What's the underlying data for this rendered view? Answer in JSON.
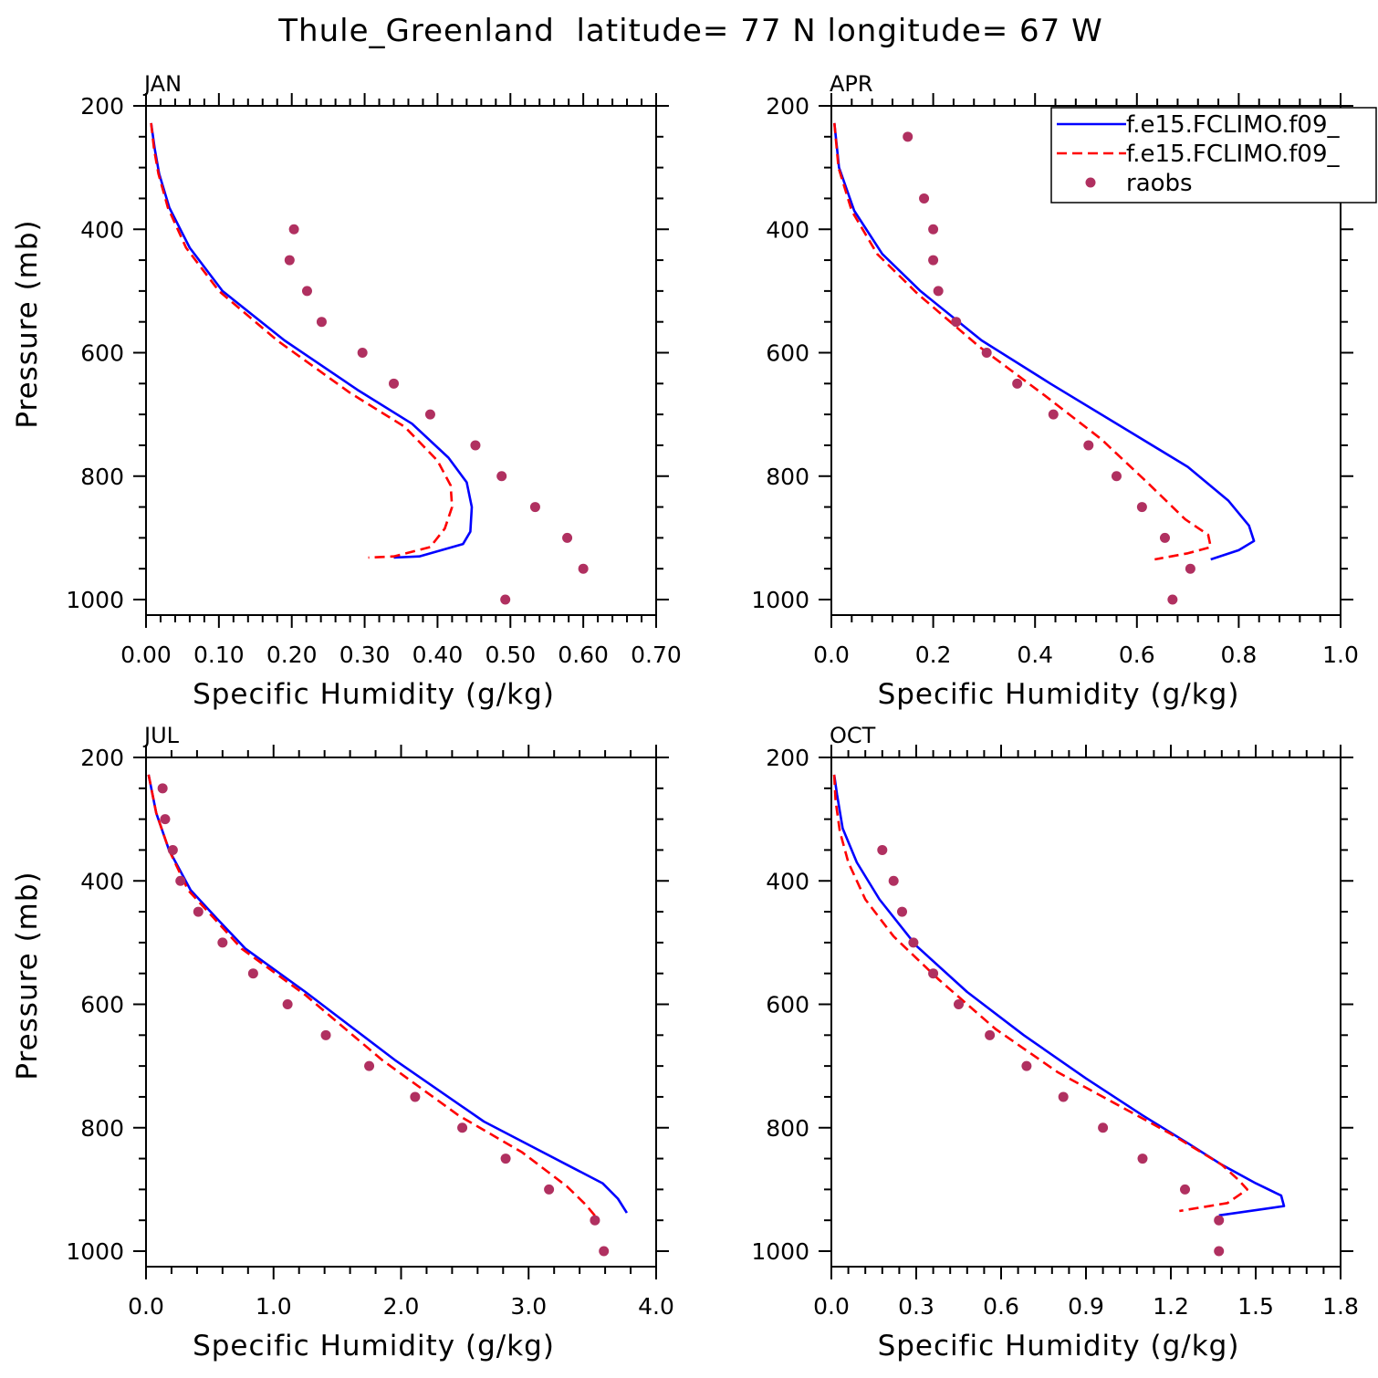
{
  "figure": {
    "title": "Thule_Greenland  latitude= 77 N longitude= 67 W"
  },
  "legend": {
    "placement": "top-right of APR panel",
    "entries": [
      {
        "label": "f.e15.FCLIMO.f09_",
        "style": "solid",
        "color": "#0000ff"
      },
      {
        "label": "f.e15.FCLIMO.f09_",
        "style": "dashed",
        "color": "#ff0000"
      },
      {
        "label": "raobs",
        "style": "dots",
        "color": "#b03060"
      }
    ]
  },
  "chart_data": [
    {
      "type": "line",
      "panel": "JAN",
      "xlabel": "Specific Humidity (g/kg)",
      "ylabel": "Pressure (mb)",
      "xlim": [
        0,
        0.7
      ],
      "ylim": [
        1000,
        200
      ],
      "xticks": [
        "0.00",
        "0.10",
        "0.20",
        "0.30",
        "0.40",
        "0.50",
        "0.60",
        "0.70"
      ],
      "yticks": [
        "200",
        "400",
        "600",
        "800",
        "1000"
      ],
      "series": [
        {
          "name": "f.e15.FCLIMO.f09_",
          "style": "solid",
          "points": [
            [
              0.007,
              228
            ],
            [
              0.012,
              270
            ],
            [
              0.018,
              310
            ],
            [
              0.032,
              365
            ],
            [
              0.06,
              430
            ],
            [
              0.105,
              500
            ],
            [
              0.19,
              580
            ],
            [
              0.29,
              660
            ],
            [
              0.365,
              715
            ],
            [
              0.415,
              770
            ],
            [
              0.44,
              810
            ],
            [
              0.447,
              850
            ],
            [
              0.445,
              890
            ],
            [
              0.435,
              910
            ],
            [
              0.375,
              930
            ],
            [
              0.34,
              932
            ]
          ]
        },
        {
          "name": "f.e15.FCLIMO.f09_",
          "style": "dashed",
          "points": [
            [
              0.007,
              228
            ],
            [
              0.011,
              270
            ],
            [
              0.017,
              310
            ],
            [
              0.03,
              365
            ],
            [
              0.055,
              430
            ],
            [
              0.1,
              500
            ],
            [
              0.18,
              580
            ],
            [
              0.28,
              665
            ],
            [
              0.355,
              720
            ],
            [
              0.4,
              775
            ],
            [
              0.418,
              815
            ],
            [
              0.42,
              850
            ],
            [
              0.41,
              885
            ],
            [
              0.39,
              915
            ],
            [
              0.34,
              930
            ],
            [
              0.305,
              932
            ]
          ]
        },
        {
          "name": "raobs",
          "style": "dots",
          "points": [
            [
              0.203,
              400
            ],
            [
              0.197,
              450
            ],
            [
              0.221,
              500
            ],
            [
              0.241,
              550
            ],
            [
              0.297,
              600
            ],
            [
              0.34,
              650
            ],
            [
              0.39,
              700
            ],
            [
              0.452,
              750
            ],
            [
              0.488,
              800
            ],
            [
              0.534,
              850
            ],
            [
              0.578,
              900
            ],
            [
              0.6,
              950
            ],
            [
              0.493,
              1000
            ]
          ]
        }
      ]
    },
    {
      "type": "line",
      "panel": "APR",
      "xlabel": "Specific Humidity (g/kg)",
      "ylabel": "",
      "xlim": [
        0,
        1.0
      ],
      "ylim": [
        1000,
        200
      ],
      "xticks": [
        "0.0",
        "0.2",
        "0.4",
        "0.6",
        "0.8",
        "1.0"
      ],
      "yticks": [
        "200",
        "400",
        "600",
        "800",
        "1000"
      ],
      "series": [
        {
          "name": "f.e15.FCLIMO.f09_",
          "style": "solid",
          "points": [
            [
              0.006,
              228
            ],
            [
              0.015,
              300
            ],
            [
              0.045,
              370
            ],
            [
              0.1,
              440
            ],
            [
              0.175,
              500
            ],
            [
              0.295,
              580
            ],
            [
              0.43,
              650
            ],
            [
              0.59,
              730
            ],
            [
              0.7,
              785
            ],
            [
              0.78,
              840
            ],
            [
              0.82,
              880
            ],
            [
              0.83,
              905
            ],
            [
              0.8,
              920
            ],
            [
              0.745,
              935
            ]
          ]
        },
        {
          "name": "f.e15.FCLIMO.f09_",
          "style": "dashed",
          "points": [
            [
              0.006,
              228
            ],
            [
              0.014,
              300
            ],
            [
              0.04,
              370
            ],
            [
              0.09,
              440
            ],
            [
              0.17,
              505
            ],
            [
              0.29,
              590
            ],
            [
              0.42,
              670
            ],
            [
              0.53,
              740
            ],
            [
              0.62,
              810
            ],
            [
              0.695,
              870
            ],
            [
              0.74,
              895
            ],
            [
              0.745,
              915
            ],
            [
              0.7,
              925
            ],
            [
              0.635,
              935
            ]
          ]
        },
        {
          "name": "raobs",
          "style": "dots",
          "points": [
            [
              0.15,
              250
            ],
            [
              0.182,
              350
            ],
            [
              0.2,
              400
            ],
            [
              0.2,
              450
            ],
            [
              0.21,
              500
            ],
            [
              0.245,
              550
            ],
            [
              0.305,
              600
            ],
            [
              0.365,
              650
            ],
            [
              0.436,
              700
            ],
            [
              0.505,
              750
            ],
            [
              0.56,
              800
            ],
            [
              0.61,
              850
            ],
            [
              0.655,
              900
            ],
            [
              0.705,
              950
            ],
            [
              0.67,
              1000
            ]
          ]
        }
      ]
    },
    {
      "type": "line",
      "panel": "JUL",
      "xlabel": "Specific Humidity (g/kg)",
      "ylabel": "Pressure (mb)",
      "xlim": [
        0,
        4.0
      ],
      "ylim": [
        1000,
        200
      ],
      "xticks": [
        "0.0",
        "1.0",
        "2.0",
        "3.0",
        "4.0"
      ],
      "yticks": [
        "200",
        "400",
        "600",
        "800",
        "1000"
      ],
      "series": [
        {
          "name": "f.e15.FCLIMO.f09_",
          "style": "solid",
          "points": [
            [
              0.02,
              228
            ],
            [
              0.08,
              290
            ],
            [
              0.18,
              350
            ],
            [
              0.35,
              415
            ],
            [
              0.55,
              460
            ],
            [
              0.78,
              510
            ],
            [
              1.25,
              580
            ],
            [
              1.95,
              690
            ],
            [
              2.65,
              790
            ],
            [
              3.3,
              860
            ],
            [
              3.58,
              890
            ],
            [
              3.7,
              915
            ],
            [
              3.77,
              938
            ]
          ]
        },
        {
          "name": "f.e15.FCLIMO.f09_",
          "style": "dashed",
          "points": [
            [
              0.02,
              228
            ],
            [
              0.08,
              290
            ],
            [
              0.18,
              350
            ],
            [
              0.33,
              415
            ],
            [
              0.53,
              460
            ],
            [
              0.75,
              510
            ],
            [
              1.25,
              585
            ],
            [
              1.85,
              690
            ],
            [
              2.45,
              780
            ],
            [
              2.95,
              840
            ],
            [
              3.3,
              895
            ],
            [
              3.45,
              925
            ],
            [
              3.55,
              950
            ]
          ]
        },
        {
          "name": "raobs",
          "style": "dots",
          "points": [
            [
              0.13,
              250
            ],
            [
              0.15,
              300
            ],
            [
              0.21,
              350
            ],
            [
              0.27,
              400
            ],
            [
              0.41,
              450
            ],
            [
              0.6,
              500
            ],
            [
              0.84,
              550
            ],
            [
              1.11,
              600
            ],
            [
              1.41,
              650
            ],
            [
              1.75,
              700
            ],
            [
              2.11,
              750
            ],
            [
              2.48,
              800
            ],
            [
              2.82,
              850
            ],
            [
              3.16,
              900
            ],
            [
              3.52,
              950
            ],
            [
              3.59,
              1000
            ]
          ]
        }
      ]
    },
    {
      "type": "line",
      "panel": "OCT",
      "xlabel": "Specific Humidity (g/kg)",
      "ylabel": "",
      "xlim": [
        0,
        1.8
      ],
      "ylim": [
        1000,
        200
      ],
      "xticks": [
        "0.0",
        "0.3",
        "0.6",
        "0.9",
        "1.2",
        "1.5",
        "1.8"
      ],
      "yticks": [
        "200",
        "400",
        "600",
        "800",
        "1000"
      ],
      "series": [
        {
          "name": "f.e15.FCLIMO.f09_",
          "style": "solid",
          "points": [
            [
              0.01,
              228
            ],
            [
              0.02,
              260
            ],
            [
              0.04,
              315
            ],
            [
              0.09,
              370
            ],
            [
              0.17,
              430
            ],
            [
              0.3,
              505
            ],
            [
              0.48,
              580
            ],
            [
              0.68,
              650
            ],
            [
              0.9,
              720
            ],
            [
              1.1,
              780
            ],
            [
              1.26,
              825
            ],
            [
              1.38,
              860
            ],
            [
              1.5,
              890
            ],
            [
              1.59,
              910
            ],
            [
              1.6,
              927
            ],
            [
              1.37,
              942
            ]
          ]
        },
        {
          "name": "f.e15.FCLIMO.f09_",
          "style": "dashed",
          "points": [
            [
              0.01,
              228
            ],
            [
              0.015,
              270
            ],
            [
              0.03,
              320
            ],
            [
              0.06,
              370
            ],
            [
              0.12,
              430
            ],
            [
              0.22,
              490
            ],
            [
              0.38,
              560
            ],
            [
              0.58,
              640
            ],
            [
              0.8,
              710
            ],
            [
              1.0,
              760
            ],
            [
              1.2,
              810
            ],
            [
              1.38,
              860
            ],
            [
              1.44,
              885
            ],
            [
              1.47,
              900
            ],
            [
              1.4,
              922
            ],
            [
              1.23,
              935
            ]
          ]
        },
        {
          "name": "raobs",
          "style": "dots",
          "points": [
            [
              0.18,
              350
            ],
            [
              0.22,
              400
            ],
            [
              0.25,
              450
            ],
            [
              0.29,
              500
            ],
            [
              0.36,
              550
            ],
            [
              0.45,
              600
            ],
            [
              0.56,
              650
            ],
            [
              0.69,
              700
            ],
            [
              0.82,
              750
            ],
            [
              0.96,
              800
            ],
            [
              1.1,
              850
            ],
            [
              1.25,
              900
            ],
            [
              1.37,
              950
            ],
            [
              1.37,
              1000
            ]
          ]
        }
      ]
    }
  ]
}
